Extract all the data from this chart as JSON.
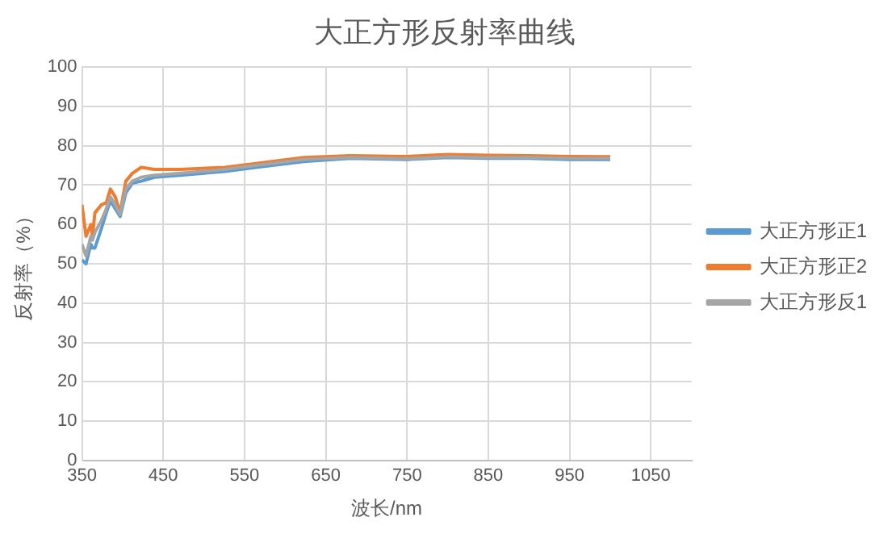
{
  "chart_data": {
    "type": "line",
    "title": "大正方形反射率曲线",
    "xlabel": "波长/nm",
    "ylabel": "反射率（%）",
    "x": [
      350,
      355,
      361,
      363,
      366,
      374,
      380,
      385,
      391,
      397,
      404,
      412,
      423,
      439,
      471,
      526,
      564,
      623,
      680,
      750,
      800,
      850,
      900,
      950,
      1000
    ],
    "series": [
      {
        "name": "大正方形正1",
        "color": "#5b9bd5",
        "values": [
          51,
          50,
          55,
          54,
          54,
          59,
          63,
          66,
          64,
          62,
          68,
          70.5,
          71,
          72,
          72.5,
          73.5,
          74.5,
          76,
          76.8,
          76.5,
          77,
          76.8,
          76.8,
          76.5,
          76.5
        ]
      },
      {
        "name": "大正方形正2",
        "color": "#ed7d31",
        "values": [
          65,
          57,
          60,
          57,
          63,
          65,
          65.5,
          69,
          67,
          63,
          71,
          73,
          74.5,
          74,
          74,
          74.5,
          75.5,
          77,
          77.5,
          77.3,
          77.8,
          77.6,
          77.5,
          77.3,
          77.2
        ]
      },
      {
        "name": "大正方形反1",
        "color": "#a5a5a5",
        "values": [
          55,
          52,
          57,
          56,
          58,
          61,
          64,
          67,
          65,
          62.5,
          69,
          71,
          72,
          72.5,
          73,
          74,
          75,
          76.5,
          77,
          76.7,
          77.2,
          77,
          77,
          76.8,
          76.8
        ]
      }
    ],
    "xlim": [
      350,
      1100
    ],
    "xticks": [
      350,
      450,
      550,
      650,
      750,
      850,
      950,
      1050
    ],
    "ylim": [
      0,
      100
    ],
    "yticks": [
      0,
      10,
      20,
      30,
      40,
      50,
      60,
      70,
      80,
      90,
      100
    ],
    "grid": true,
    "legend": "right",
    "marker": "none",
    "line_style": "solid"
  }
}
